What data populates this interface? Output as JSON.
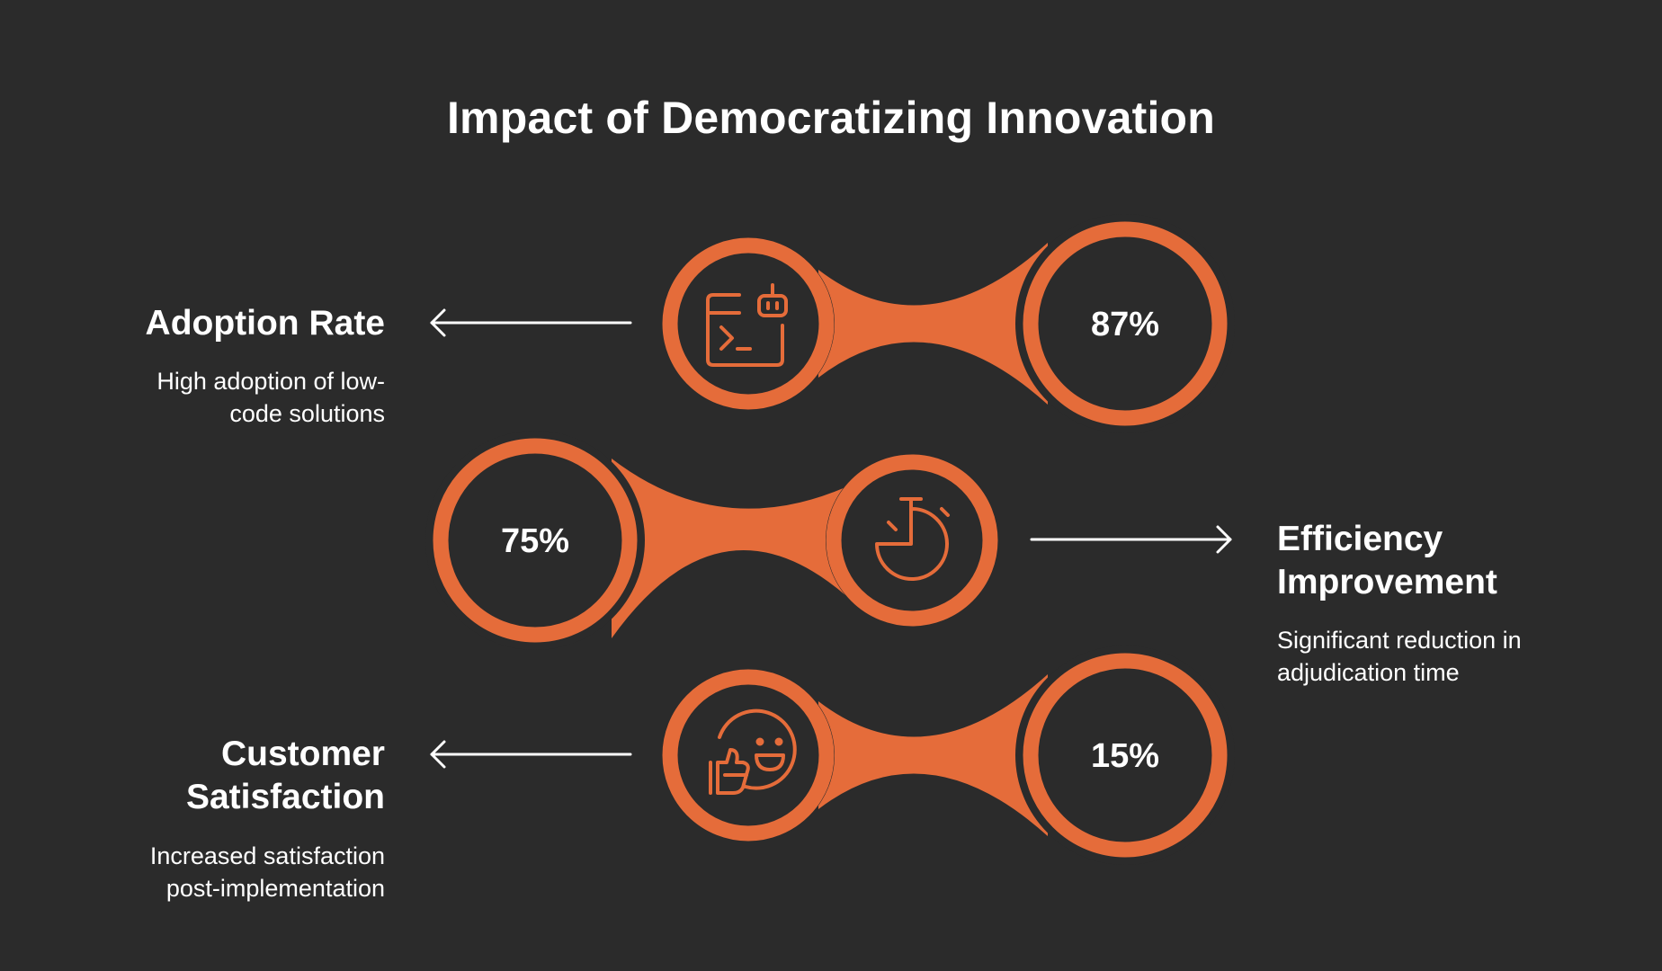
{
  "title": "Impact of Democratizing Innovation",
  "colors": {
    "accent": "#e56c3a",
    "background": "#2b2b2b",
    "text": "#ffffff"
  },
  "items": [
    {
      "label": "Adoption Rate",
      "description_lines": [
        "High adoption of low-",
        "code solutions"
      ],
      "value": "87%",
      "icon": "terminal-robot-icon"
    },
    {
      "label_lines": [
        "Efficiency",
        "Improvement"
      ],
      "description_lines": [
        "Significant reduction in",
        "adjudication time"
      ],
      "value": "75%",
      "icon": "stopwatch-icon"
    },
    {
      "label_lines": [
        "Customer",
        "Satisfaction"
      ],
      "description_lines": [
        "Increased satisfaction",
        "post-implementation"
      ],
      "value": "15%",
      "icon": "smiley-thumbs-up-icon"
    }
  ]
}
